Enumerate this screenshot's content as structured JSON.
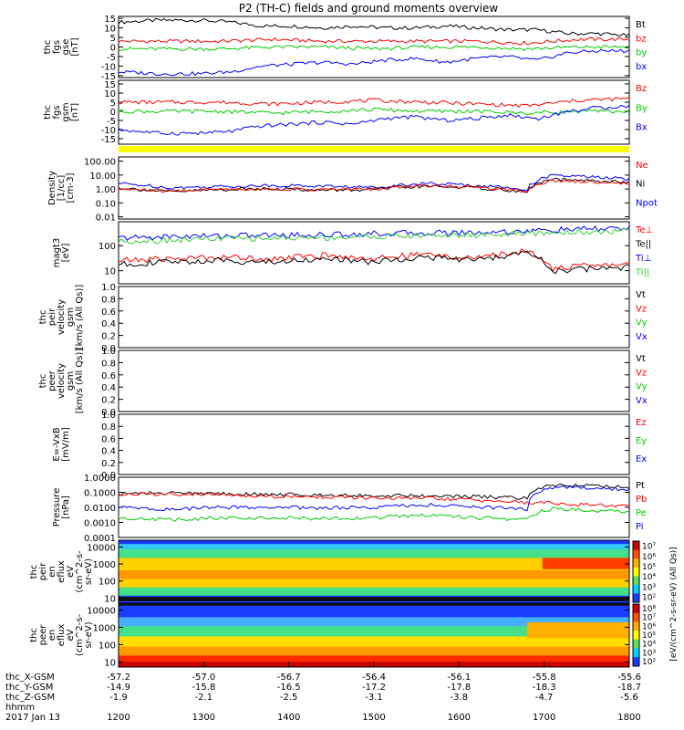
{
  "title": "P2 (TH-C) fields and ground moments overview",
  "colors": {
    "black": "#000000",
    "red": "#ff0000",
    "green": "#00cc00",
    "blue": "#0000ff",
    "yellow": "#ffff00",
    "lightgreen": "#33cc33"
  },
  "chart_data": [
    {
      "type": "line",
      "id": "fgs_gse",
      "ylabel_lines": [
        "thc",
        "fgs",
        "gse",
        "[nT]"
      ],
      "yticks": [
        "15",
        "10",
        "5",
        "0",
        "-5",
        "-10",
        "-15"
      ],
      "ylim": [
        -16,
        16
      ],
      "scale": "linear",
      "legend": [
        {
          "label": "Bt",
          "color": "#000000"
        },
        {
          "label": "bz",
          "color": "#ff0000"
        },
        {
          "label": "by",
          "color": "#00cc00"
        },
        {
          "label": "bx",
          "color": "#0000ff"
        }
      ],
      "series": [
        {
          "name": "Bt",
          "color": "#000000",
          "x": [
            0,
            0.08,
            0.16,
            0.22,
            0.28,
            0.34,
            0.4,
            0.46,
            0.52,
            0.58,
            0.64,
            0.7,
            0.76,
            0.82,
            0.88,
            0.94,
            1.0
          ],
          "values": [
            13,
            14,
            14,
            13,
            11,
            11,
            10,
            11,
            10,
            10,
            11,
            10,
            9,
            9,
            7,
            7,
            6
          ]
        },
        {
          "name": "bz",
          "color": "#ff0000",
          "x": [
            0,
            0.1,
            0.2,
            0.3,
            0.4,
            0.5,
            0.6,
            0.7,
            0.8,
            0.9,
            1.0
          ],
          "values": [
            3,
            3,
            3,
            4,
            3,
            3,
            3,
            3,
            2,
            4,
            4
          ]
        },
        {
          "name": "by",
          "color": "#00cc00",
          "x": [
            0,
            0.1,
            0.2,
            0.3,
            0.4,
            0.5,
            0.6,
            0.7,
            0.8,
            0.9,
            1.0
          ],
          "values": [
            -1,
            -1,
            -1,
            0,
            0,
            -1,
            0,
            0,
            -1,
            0,
            0
          ]
        },
        {
          "name": "bx",
          "color": "#0000ff",
          "x": [
            0,
            0.08,
            0.16,
            0.22,
            0.28,
            0.34,
            0.4,
            0.46,
            0.52,
            0.58,
            0.64,
            0.7,
            0.76,
            0.82,
            0.88,
            0.94,
            1.0
          ],
          "values": [
            -13,
            -14,
            -14,
            -13,
            -10,
            -9,
            -8,
            -9,
            -7,
            -6,
            -8,
            -6,
            -5,
            -7,
            -3,
            -2,
            -2
          ]
        }
      ]
    },
    {
      "type": "line",
      "id": "fgs_gsm",
      "ylabel_lines": [
        "thc",
        "fgs",
        "gsm",
        "[nT]"
      ],
      "yticks": [
        "15",
        "10",
        "5",
        "0",
        "-5",
        "-10",
        "-15"
      ],
      "ylim": [
        -18,
        17
      ],
      "scale": "linear",
      "legend": [
        {
          "label": "Bz",
          "color": "#ff0000"
        },
        {
          "label": "By",
          "color": "#00cc00"
        },
        {
          "label": "Bx",
          "color": "#0000ff"
        }
      ],
      "series": [
        {
          "name": "Bz",
          "color": "#ff0000",
          "x": [
            0,
            0.1,
            0.2,
            0.3,
            0.4,
            0.5,
            0.6,
            0.7,
            0.8,
            0.9,
            1.0
          ],
          "values": [
            5,
            5,
            5,
            4,
            5,
            6,
            5,
            4,
            3,
            6,
            7
          ]
        },
        {
          "name": "By",
          "color": "#00cc00",
          "x": [
            0,
            0.1,
            0.2,
            0.3,
            0.4,
            0.5,
            0.6,
            0.7,
            0.8,
            0.9,
            1.0
          ],
          "values": [
            0,
            0,
            0,
            -1,
            0,
            1,
            0,
            0,
            -1,
            0,
            0
          ]
        },
        {
          "name": "Bx",
          "color": "#0000ff",
          "x": [
            0,
            0.08,
            0.16,
            0.22,
            0.28,
            0.34,
            0.4,
            0.46,
            0.52,
            0.58,
            0.64,
            0.7,
            0.76,
            0.82,
            0.88,
            0.94,
            1.0
          ],
          "values": [
            -10,
            -12,
            -12,
            -11,
            -8,
            -7,
            -6,
            -7,
            -4,
            -3,
            -5,
            -4,
            -2,
            -4,
            0,
            2,
            3
          ]
        }
      ]
    },
    {
      "type": "line",
      "id": "density",
      "ylabel_lines": [
        "Density",
        "[1/cc]",
        "[cm-3]"
      ],
      "yticks": [
        "100.00",
        "10.00",
        "1.00",
        "0.10",
        "0.01"
      ],
      "ylim": [
        0.007,
        200
      ],
      "scale": "log",
      "legend": [
        {
          "label": "Ne",
          "color": "#ff0000"
        },
        {
          "label": "Ni",
          "color": "#000000"
        },
        {
          "label": "Npot",
          "color": "#0000ff"
        }
      ],
      "series": [
        {
          "name": "Npot",
          "color": "#0000ff",
          "x": [
            0,
            0.1,
            0.2,
            0.3,
            0.4,
            0.5,
            0.6,
            0.7,
            0.8,
            0.85,
            0.9,
            1.0
          ],
          "values": [
            2.5,
            1.2,
            1.5,
            1.8,
            1.6,
            1.3,
            2.5,
            1.8,
            0.9,
            9,
            8,
            5
          ]
        },
        {
          "name": "Ni",
          "color": "#000000",
          "x": [
            0,
            0.1,
            0.2,
            0.3,
            0.4,
            0.5,
            0.6,
            0.7,
            0.8,
            0.85,
            0.9,
            1.0
          ],
          "values": [
            1.2,
            0.6,
            0.9,
            1.1,
            0.8,
            0.9,
            1.6,
            1.2,
            0.6,
            5,
            4,
            3
          ]
        },
        {
          "name": "Ne",
          "color": "#ff0000",
          "x": [
            0,
            0.1,
            0.2,
            0.3,
            0.4,
            0.5,
            0.6,
            0.7,
            0.8,
            0.85,
            0.9,
            1.0
          ],
          "values": [
            1.0,
            0.7,
            1.0,
            1.0,
            0.9,
            1.0,
            1.8,
            1.3,
            0.7,
            4,
            3.5,
            2.5
          ]
        }
      ]
    },
    {
      "type": "line",
      "id": "temperature",
      "ylabel_lines": [
        "magt3",
        "[eV]"
      ],
      "yticks": [
        "100",
        "10"
      ],
      "ylim": [
        3,
        900
      ],
      "scale": "log",
      "legend": [
        {
          "label": "Te⊥",
          "color": "#ff0000"
        },
        {
          "label": "Te||",
          "color": "#000000"
        },
        {
          "label": "Ti⊥",
          "color": "#0000ff"
        },
        {
          "label": "Ti||",
          "color": "#33cc33"
        }
      ],
      "series": [
        {
          "name": "Ti⊥",
          "color": "#0000ff",
          "x": [
            0,
            0.1,
            0.2,
            0.3,
            0.4,
            0.5,
            0.6,
            0.7,
            0.8,
            0.9,
            1.0
          ],
          "values": [
            200,
            230,
            250,
            260,
            270,
            300,
            320,
            340,
            380,
            450,
            500
          ]
        },
        {
          "name": "Ti||",
          "color": "#33cc33",
          "x": [
            0,
            0.1,
            0.2,
            0.3,
            0.4,
            0.5,
            0.6,
            0.7,
            0.8,
            0.9,
            1.0
          ],
          "values": [
            150,
            170,
            190,
            200,
            210,
            230,
            250,
            270,
            300,
            350,
            380
          ]
        },
        {
          "name": "Te⊥",
          "color": "#ff0000",
          "x": [
            0,
            0.1,
            0.2,
            0.3,
            0.4,
            0.5,
            0.6,
            0.7,
            0.8,
            0.85,
            0.9,
            1.0
          ],
          "values": [
            25,
            30,
            35,
            30,
            40,
            30,
            45,
            30,
            60,
            12,
            15,
            18
          ]
        },
        {
          "name": "Te||",
          "color": "#000000",
          "x": [
            0,
            0.1,
            0.2,
            0.3,
            0.4,
            0.5,
            0.6,
            0.7,
            0.8,
            0.85,
            0.9,
            1.0
          ],
          "values": [
            18,
            22,
            25,
            22,
            30,
            22,
            35,
            25,
            50,
            9,
            11,
            14
          ]
        }
      ]
    },
    {
      "type": "line",
      "id": "ion_velocity",
      "ylabel_lines": [
        "thc",
        "peir",
        "velocity",
        "gsm",
        "[km/s (All Qs)]"
      ],
      "yticks": [
        "1.0",
        "0.8",
        "0.6",
        "0.4",
        "0.2",
        "0.0"
      ],
      "ylim": [
        0,
        1
      ],
      "scale": "linear",
      "legend": [
        {
          "label": "Vt",
          "color": "#000000"
        },
        {
          "label": "Vz",
          "color": "#ff0000"
        },
        {
          "label": "Vy",
          "color": "#00cc00"
        },
        {
          "label": "Vx",
          "color": "#0000ff"
        }
      ],
      "series": []
    },
    {
      "type": "line",
      "id": "electron_velocity",
      "ylabel_lines": [
        "thc",
        "peer",
        "velocity",
        "gsm",
        "[km/s (All Qs)]"
      ],
      "yticks": [
        "1.0",
        "0.8",
        "0.6",
        "0.4",
        "0.2",
        "0.0"
      ],
      "ylim": [
        0,
        1
      ],
      "scale": "linear",
      "legend": [
        {
          "label": "Vt",
          "color": "#000000"
        },
        {
          "label": "Vz",
          "color": "#ff0000"
        },
        {
          "label": "Vy",
          "color": "#00cc00"
        },
        {
          "label": "Vx",
          "color": "#0000ff"
        }
      ],
      "series": []
    },
    {
      "type": "line",
      "id": "efield",
      "ylabel_lines": [
        "E=-VxB",
        "[mV/m]"
      ],
      "yticks": [
        "1.0",
        "0.8",
        "0.6",
        "0.4",
        "0.2",
        "0.0"
      ],
      "ylim": [
        0,
        1
      ],
      "scale": "linear",
      "legend": [
        {
          "label": "Ez",
          "color": "#ff0000"
        },
        {
          "label": "Ey",
          "color": "#00cc00"
        },
        {
          "label": "Ex",
          "color": "#0000ff"
        }
      ],
      "series": []
    },
    {
      "type": "line",
      "id": "pressure",
      "ylabel_lines": [
        "Pressure",
        "[nPa]"
      ],
      "yticks": [
        "1.0000",
        "0.1000",
        "0.0100",
        "0.0010",
        "0.0001"
      ],
      "ylim": [
        0.0001,
        1
      ],
      "scale": "log",
      "legend": [
        {
          "label": "Pt",
          "color": "#000000"
        },
        {
          "label": "Pb",
          "color": "#ff0000"
        },
        {
          "label": "Pe",
          "color": "#00cc00"
        },
        {
          "label": "Pi",
          "color": "#0000ff"
        }
      ],
      "series": [
        {
          "name": "Pt",
          "color": "#000000",
          "x": [
            0,
            0.1,
            0.2,
            0.3,
            0.4,
            0.5,
            0.6,
            0.7,
            0.8,
            0.85,
            0.9,
            1.0
          ],
          "values": [
            0.08,
            0.09,
            0.08,
            0.07,
            0.07,
            0.06,
            0.06,
            0.05,
            0.04,
            0.3,
            0.3,
            0.2
          ]
        },
        {
          "name": "Pb",
          "color": "#ff0000",
          "x": [
            0,
            0.1,
            0.2,
            0.3,
            0.4,
            0.5,
            0.6,
            0.7,
            0.8,
            0.85,
            0.9,
            1.0
          ],
          "values": [
            0.07,
            0.08,
            0.07,
            0.05,
            0.05,
            0.04,
            0.04,
            0.03,
            0.02,
            0.02,
            0.015,
            0.012
          ]
        },
        {
          "name": "Pi",
          "color": "#0000ff",
          "x": [
            0,
            0.1,
            0.2,
            0.3,
            0.4,
            0.5,
            0.6,
            0.7,
            0.8,
            0.85,
            0.9,
            1.0
          ],
          "values": [
            0.01,
            0.007,
            0.01,
            0.01,
            0.009,
            0.01,
            0.015,
            0.01,
            0.008,
            0.2,
            0.2,
            0.15
          ]
        },
        {
          "name": "Pe",
          "color": "#00cc00",
          "x": [
            0,
            0.1,
            0.2,
            0.3,
            0.4,
            0.5,
            0.6,
            0.7,
            0.8,
            0.85,
            0.9,
            1.0
          ],
          "values": [
            0.002,
            0.0015,
            0.002,
            0.002,
            0.0018,
            0.002,
            0.003,
            0.002,
            0.0015,
            0.008,
            0.007,
            0.005
          ]
        }
      ]
    },
    {
      "type": "heatmap",
      "id": "ion_spectrogram",
      "ylabel_lines": [
        "thc",
        "peir",
        "en",
        "eflux",
        "eV",
        "(cm^2-s-",
        "sr-eV)"
      ],
      "yticks": [
        "10000",
        "1000",
        "100",
        "10"
      ],
      "ylim": [
        5,
        25000
      ],
      "scale": "log",
      "description": "ion energy flux spectrogram; peak near 100-3000 eV, enhanced 5000-10000 eV near 1700-1800"
    },
    {
      "type": "heatmap",
      "id": "electron_spectrogram",
      "ylabel_lines": [
        "thc",
        "peer",
        "en",
        "eflux",
        "eV",
        "(cm^2-s-",
        "sr-eV)"
      ],
      "yticks": [
        "10000",
        "1000",
        "100",
        "10"
      ],
      "ylim": [
        5,
        25000
      ],
      "scale": "log",
      "description": "electron energy flux spectrogram; intense below ~100 eV, enhanced 100-1000 eV after 1700"
    }
  ],
  "colorbar": {
    "label": "[eV/(cm^2-s-sr-eV) (All Qs)]",
    "ion_ticks": [
      "10⁷",
      "10⁶",
      "10⁵",
      "10⁴",
      "10³",
      "10²"
    ],
    "electron_ticks": [
      "10⁸",
      "10⁷",
      "10⁶",
      "10⁵",
      "10⁴",
      "10³",
      "10²"
    ]
  },
  "xaxis": {
    "ticks_hhmm": [
      "1200",
      "1300",
      "1400",
      "1500",
      "1600",
      "1700",
      "1800"
    ],
    "rows": [
      {
        "label": "thc_X-GSM",
        "values": [
          "-57.2",
          "-57.0",
          "-56.7",
          "-56.4",
          "-56.1",
          "-55.8",
          "-55.6"
        ]
      },
      {
        "label": "thc_Y-GSM",
        "values": [
          "-14.9",
          "-15.8",
          "-16.5",
          "-17.2",
          "-17.8",
          "-18.3",
          "-18.7"
        ]
      },
      {
        "label": "thc_Z-GSM",
        "values": [
          "-1.9",
          "-2.1",
          "-2.5",
          "-3.1",
          "-3.8",
          "-4.7",
          "-5.6"
        ]
      },
      {
        "label": "hhmm",
        "values": []
      }
    ],
    "date": "2017 Jan 13"
  }
}
